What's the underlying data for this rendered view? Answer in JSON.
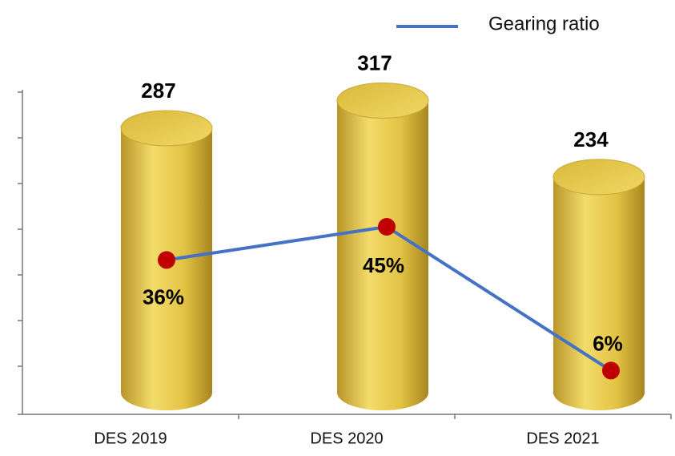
{
  "chart_data": {
    "type": "bar",
    "categories": [
      "DES 2019",
      "DES 2020",
      "DES 2021"
    ],
    "series": [
      {
        "type": "bar",
        "color": "#e2c243",
        "values": [
          287,
          317,
          234
        ]
      },
      {
        "type": "line",
        "name": "Gearing ratio",
        "color": "#4472c4",
        "marker_color": "#c00000",
        "axis": "y2",
        "values": [
          36,
          45,
          6
        ],
        "value_labels": [
          "36%",
          "45%",
          "6%"
        ]
      }
    ],
    "ylim": [
      0,
      400
    ],
    "y2lim": [
      0,
      100
    ],
    "legend": "top-right"
  }
}
